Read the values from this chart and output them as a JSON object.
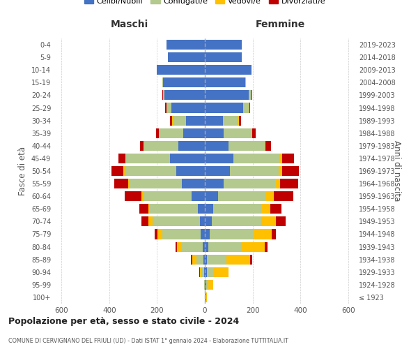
{
  "age_groups": [
    "100+",
    "95-99",
    "90-94",
    "85-89",
    "80-84",
    "75-79",
    "70-74",
    "65-69",
    "60-64",
    "55-59",
    "50-54",
    "45-49",
    "40-44",
    "35-39",
    "30-34",
    "25-29",
    "20-24",
    "15-19",
    "10-14",
    "5-9",
    "0-4"
  ],
  "birth_years": [
    "≤ 1923",
    "1924-1928",
    "1929-1933",
    "1934-1938",
    "1939-1943",
    "1944-1948",
    "1949-1953",
    "1954-1958",
    "1959-1963",
    "1964-1968",
    "1969-1973",
    "1974-1978",
    "1979-1983",
    "1984-1988",
    "1989-1993",
    "1994-1998",
    "1999-2003",
    "2004-2008",
    "2009-2013",
    "2014-2018",
    "2019-2023"
  ],
  "maschi": {
    "celibi": [
      0,
      0,
      2,
      5,
      8,
      18,
      20,
      30,
      55,
      95,
      120,
      145,
      110,
      90,
      80,
      140,
      170,
      175,
      200,
      155,
      160
    ],
    "coniugati": [
      0,
      2,
      10,
      30,
      90,
      160,
      200,
      200,
      205,
      220,
      215,
      185,
      145,
      100,
      55,
      20,
      5,
      2,
      1,
      0,
      0
    ],
    "vedovi": [
      0,
      2,
      8,
      18,
      20,
      20,
      15,
      5,
      5,
      5,
      5,
      2,
      2,
      2,
      1,
      1,
      0,
      0,
      0,
      0,
      0
    ],
    "divorziati": [
      0,
      0,
      2,
      5,
      5,
      12,
      30,
      40,
      70,
      60,
      50,
      30,
      15,
      12,
      10,
      5,
      2,
      0,
      0,
      0,
      0
    ]
  },
  "femmine": {
    "nubili": [
      2,
      5,
      8,
      10,
      15,
      20,
      28,
      35,
      55,
      80,
      105,
      120,
      100,
      80,
      75,
      160,
      185,
      170,
      195,
      155,
      155
    ],
    "coniugate": [
      2,
      10,
      30,
      80,
      140,
      185,
      210,
      200,
      200,
      215,
      205,
      195,
      150,
      115,
      65,
      25,
      10,
      3,
      1,
      0,
      0
    ],
    "vedove": [
      5,
      20,
      60,
      100,
      95,
      75,
      60,
      40,
      35,
      20,
      15,
      8,
      5,
      3,
      2,
      1,
      0,
      0,
      0,
      0,
      0
    ],
    "divorziate": [
      0,
      0,
      2,
      8,
      12,
      18,
      40,
      45,
      80,
      75,
      70,
      50,
      22,
      15,
      10,
      5,
      2,
      0,
      0,
      0,
      0
    ]
  },
  "colors": {
    "celibi_nubili": "#4472c4",
    "coniugati": "#b3c98d",
    "vedovi": "#ffc000",
    "divorziati": "#c00000"
  },
  "xlim": 630,
  "title": "Popolazione per età, sesso e stato civile - 2024",
  "subtitle": "COMUNE DI CERVIGNANO DEL FRIULI (UD) - Dati ISTAT 1° gennaio 2024 - Elaborazione TUTTITALIA.IT",
  "ylabel_left": "Fasce di età",
  "ylabel_right": "Anni di nascita",
  "xlabel_maschi": "Maschi",
  "xlabel_femmine": "Femmine",
  "bg_color": "#ffffff",
  "grid_color": "#cccccc"
}
